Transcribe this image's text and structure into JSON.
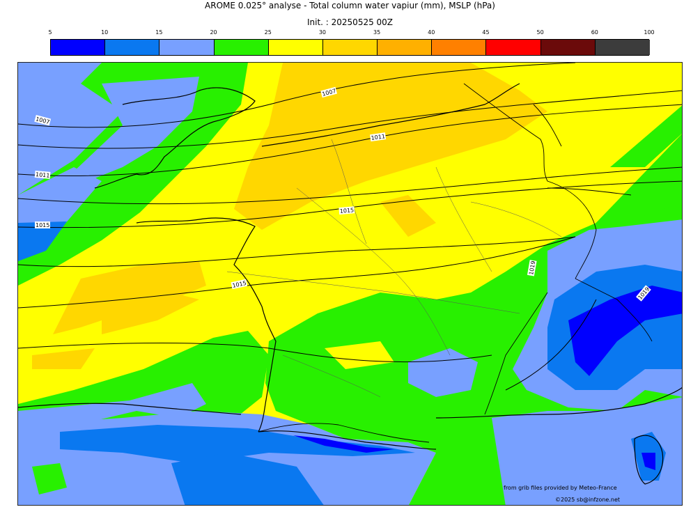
{
  "title": "AROME 0.025° analyse - Total column water vapiur (mm), MSLP (hPa)",
  "init": "Init. : 20250525 00Z",
  "colorbar": {
    "ticks": [
      "5",
      "10",
      "15",
      "20",
      "25",
      "30",
      "35",
      "40",
      "45",
      "50",
      "60",
      "100"
    ],
    "colors": [
      "#0000ff",
      "#0a78f0",
      "#78a0ff",
      "#28f000",
      "#ffff00",
      "#ffd700",
      "#ffb000",
      "#ff8000",
      "#ff0000",
      "#6b0a0a",
      "#3c3c3c"
    ]
  },
  "isobars": [
    "1007",
    "1007",
    "1011",
    "1011",
    "1015",
    "1015",
    "1015",
    "1019",
    "1019"
  ],
  "credits": {
    "source": "from grib files provided by Meteo-France",
    "copyright": "©2025 sb@infzone.net"
  }
}
